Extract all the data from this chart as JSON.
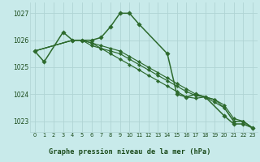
{
  "background_color": "#c8eaea",
  "grid_color": "#b0d4d4",
  "line_color": "#2d6a2d",
  "title": "Graphe pression niveau de la mer (hPa)",
  "title_color": "#1a4a1a",
  "title_bg": "#c8eaea",
  "xlim": [
    -0.5,
    23.5
  ],
  "ylim": [
    1022.6,
    1027.4
  ],
  "yticks": [
    1023,
    1024,
    1025,
    1026,
    1027
  ],
  "xticks": [
    0,
    1,
    2,
    3,
    4,
    5,
    6,
    7,
    8,
    9,
    10,
    11,
    12,
    13,
    14,
    15,
    16,
    17,
    18,
    19,
    20,
    21,
    22,
    23
  ],
  "series": [
    {
      "x": [
        0,
        1,
        3,
        4,
        5,
        6,
        7,
        8,
        9,
        10,
        11,
        14,
        15,
        16,
        17,
        18,
        20,
        21,
        22,
        23
      ],
      "y": [
        1025.6,
        1025.2,
        1026.3,
        1026.0,
        1026.0,
        1026.0,
        1026.1,
        1026.5,
        1027.0,
        1027.0,
        1026.6,
        1025.5,
        1024.0,
        1023.9,
        1024.0,
        1023.9,
        1023.2,
        1022.9,
        1022.9,
        1022.75
      ]
    },
    {
      "x": [
        0,
        4,
        5,
        6,
        7,
        8,
        9,
        10,
        11,
        12,
        13,
        14,
        15,
        16,
        17,
        18,
        19,
        20,
        21,
        22,
        23
      ],
      "y": [
        1025.6,
        1026.0,
        1026.0,
        1025.9,
        1025.7,
        1025.5,
        1025.3,
        1025.1,
        1024.9,
        1024.7,
        1024.5,
        1024.3,
        1024.1,
        1023.9,
        1023.85,
        1023.9,
        1023.7,
        1023.5,
        1023.0,
        1023.0,
        1022.75
      ]
    },
    {
      "x": [
        0,
        4,
        5,
        6,
        7,
        8,
        9,
        10,
        11,
        12,
        13,
        14,
        15,
        16,
        17,
        18,
        19,
        20,
        21,
        22,
        23
      ],
      "y": [
        1025.6,
        1026.0,
        1026.0,
        1025.9,
        1025.8,
        1025.7,
        1025.6,
        1025.4,
        1025.2,
        1025.0,
        1024.8,
        1024.6,
        1024.4,
        1024.2,
        1024.0,
        1023.9,
        1023.8,
        1023.6,
        1023.1,
        1023.0,
        1022.75
      ]
    },
    {
      "x": [
        0,
        4,
        5,
        6,
        7,
        8,
        9,
        10,
        11,
        12,
        13,
        14,
        15,
        16,
        17,
        18,
        19,
        20,
        21,
        22,
        23
      ],
      "y": [
        1025.6,
        1026.0,
        1026.0,
        1025.8,
        1025.7,
        1025.6,
        1025.5,
        1025.3,
        1025.1,
        1024.9,
        1024.7,
        1024.5,
        1024.3,
        1024.1,
        1023.95,
        1023.9,
        1023.8,
        1023.5,
        1023.0,
        1023.0,
        1022.75
      ]
    }
  ]
}
